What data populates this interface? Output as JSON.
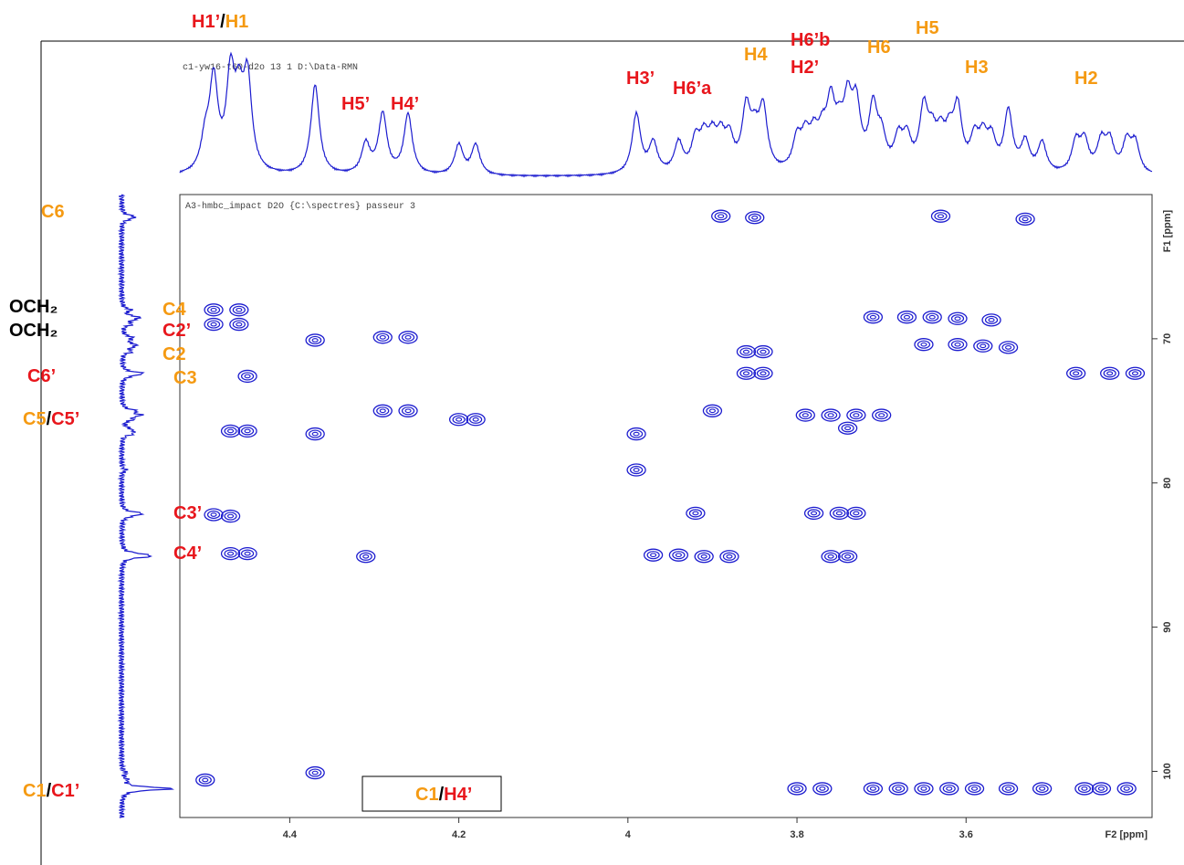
{
  "chart_data": {
    "type": "contour",
    "title": "A3-hmbc_impact D2O {C:\\spectres} passeur 3",
    "subtitle": "c1-yw16-t60-d2o  13  1  D:\\Data-RMN",
    "x_label": "F2 [ppm]",
    "y_label": "F1 [ppm]",
    "xlim": [
      4.53,
      3.38
    ],
    "ylim": [
      60,
      103.2
    ],
    "xticks": [
      4.4,
      4.2,
      4.0,
      3.8,
      3.6
    ],
    "yticks": [
      70,
      80,
      90,
      100
    ],
    "color": "#1c1ccf",
    "x": [
      4.49,
      4.46,
      4.49,
      4.46,
      4.45,
      4.47,
      4.45,
      4.47,
      4.45,
      4.49,
      4.47,
      4.5,
      4.37,
      4.37,
      4.37,
      4.31,
      4.29,
      4.26,
      4.29,
      4.26,
      4.2,
      4.18,
      3.89,
      3.85,
      3.99,
      3.99,
      3.97,
      3.94,
      3.91,
      3.88,
      3.92,
      3.9,
      3.86,
      3.84,
      3.86,
      3.84,
      3.79,
      3.76,
      3.73,
      3.7,
      3.74,
      3.78,
      3.75,
      3.73,
      3.76,
      3.74,
      3.8,
      3.77,
      3.71,
      3.68,
      3.65,
      3.62,
      3.59,
      3.55,
      3.51,
      3.46,
      3.44,
      3.41,
      3.63,
      3.53,
      3.71,
      3.67,
      3.64,
      3.61,
      3.57,
      3.65,
      3.61,
      3.58,
      3.55,
      3.47,
      3.43,
      3.4
    ],
    "values": [
      68.0,
      68.0,
      69.0,
      69.0,
      72.6,
      76.4,
      76.4,
      84.9,
      84.9,
      82.2,
      82.3,
      100.6,
      70.1,
      76.6,
      100.1,
      85.1,
      69.9,
      69.9,
      75.0,
      75.0,
      75.6,
      75.6,
      61.5,
      61.6,
      76.6,
      79.1,
      85.0,
      85.0,
      85.1,
      85.1,
      82.1,
      75.0,
      70.9,
      70.9,
      72.4,
      72.4,
      75.3,
      75.3,
      75.3,
      75.3,
      76.2,
      82.1,
      82.1,
      82.1,
      85.1,
      85.1,
      101.2,
      101.2,
      101.2,
      101.2,
      101.2,
      101.2,
      101.2,
      101.2,
      101.2,
      101.2,
      101.2,
      101.2,
      61.5,
      61.7,
      68.5,
      68.5,
      68.5,
      68.6,
      68.7,
      70.4,
      70.4,
      70.5,
      70.6,
      72.4,
      72.4,
      72.4
    ],
    "annotations": [
      {
        "parts": [
          {
            "text": "H1’",
            "color": "#e8161c"
          },
          {
            "text": "/",
            "color": "#000000"
          },
          {
            "text": "H1",
            "color": "#f59a12"
          }
        ]
      },
      {
        "parts": [
          {
            "text": "H5’",
            "color": "#e8161c"
          }
        ]
      },
      {
        "parts": [
          {
            "text": "H4’",
            "color": "#e8161c"
          }
        ]
      },
      {
        "parts": [
          {
            "text": "H3’",
            "color": "#e8161c"
          }
        ]
      },
      {
        "parts": [
          {
            "text": "H6’a",
            "color": "#e8161c"
          }
        ]
      },
      {
        "parts": [
          {
            "text": "H4",
            "color": "#f59a12"
          }
        ]
      },
      {
        "parts": [
          {
            "text": "H6’b",
            "color": "#e8161c"
          }
        ]
      },
      {
        "parts": [
          {
            "text": "H2’",
            "color": "#e8161c"
          }
        ]
      },
      {
        "parts": [
          {
            "text": "H6",
            "color": "#f59a12"
          }
        ]
      },
      {
        "parts": [
          {
            "text": "H5",
            "color": "#f59a12"
          }
        ]
      },
      {
        "parts": [
          {
            "text": "H3",
            "color": "#f59a12"
          }
        ]
      },
      {
        "parts": [
          {
            "text": "H2",
            "color": "#f59a12"
          }
        ]
      },
      {
        "parts": [
          {
            "text": "C6",
            "color": "#f59a12"
          }
        ]
      },
      {
        "parts": [
          {
            "text": "OCH₂",
            "color": "#000000"
          }
        ]
      },
      {
        "parts": [
          {
            "text": "OCH₂",
            "color": "#000000"
          }
        ]
      },
      {
        "parts": [
          {
            "text": "C4",
            "color": "#f59a12"
          }
        ]
      },
      {
        "parts": [
          {
            "text": "C2’",
            "color": "#e8161c"
          }
        ]
      },
      {
        "parts": [
          {
            "text": "C2",
            "color": "#f59a12"
          }
        ]
      },
      {
        "parts": [
          {
            "text": "C6’",
            "color": "#e8161c"
          }
        ]
      },
      {
        "parts": [
          {
            "text": "C3",
            "color": "#f59a12"
          }
        ]
      },
      {
        "parts": [
          {
            "text": "C5",
            "color": "#f59a12"
          },
          {
            "text": "/",
            "color": "#000000"
          },
          {
            "text": "C5’",
            "color": "#e8161c"
          }
        ]
      },
      {
        "parts": [
          {
            "text": "C3’",
            "color": "#e8161c"
          }
        ]
      },
      {
        "parts": [
          {
            "text": "C4’",
            "color": "#e8161c"
          }
        ]
      },
      {
        "parts": [
          {
            "text": "C1",
            "color": "#f59a12"
          },
          {
            "text": "/",
            "color": "#000000"
          },
          {
            "text": "C1’",
            "color": "#e8161c"
          }
        ]
      },
      {
        "parts": [
          {
            "text": "C1",
            "color": "#f59a12"
          },
          {
            "text": "/",
            "color": "#000000"
          },
          {
            "text": "H4’",
            "color": "#e8161c"
          }
        ]
      }
    ]
  }
}
